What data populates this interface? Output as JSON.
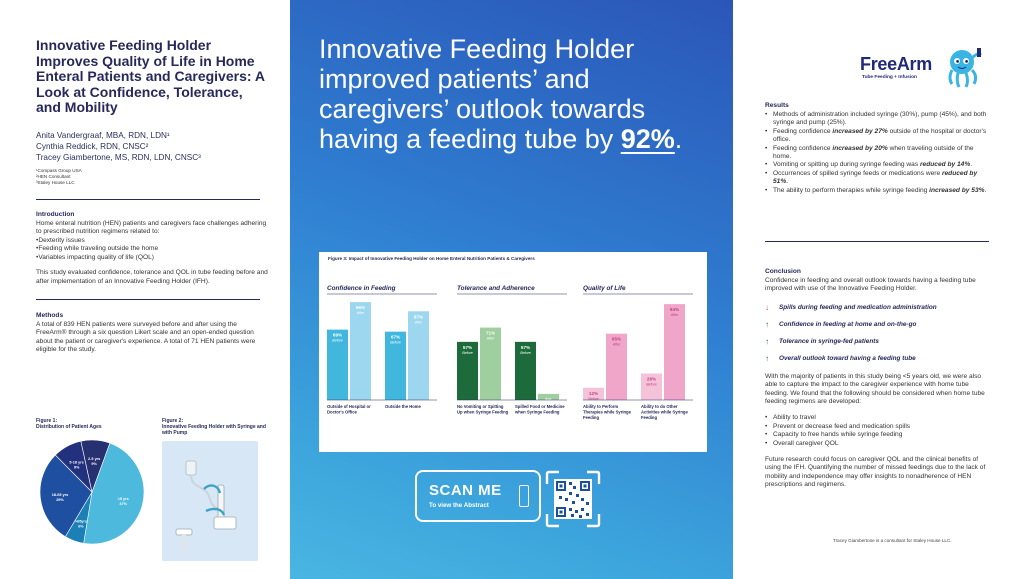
{
  "left": {
    "title": "Innovative Feeding Holder Improves Quality of Life in Home Enteral Patients and Caregivers: A Look at Confidence, Tolerance, and Mobility",
    "authors": [
      "Anita Vandergraaf, MBA, RDN, LDN¹",
      "Cynthia Reddick, RDN, CNSC²",
      "Tracey Giambertone, MS, RDN, LDN, CNSC³"
    ],
    "affiliations": [
      "¹Compass Group USA",
      "²HEN Consultant",
      "³Staley House LLC"
    ],
    "intro": {
      "heading": "Introduction",
      "lead": "Home enteral nutrition (HEN) patients and caregivers face challenges adhering to prescribed nutrition regimens related to:",
      "bullets": [
        "Dexterity issues",
        "Feeding while traveling outside the home",
        "Variables impacting quality of life (QOL)"
      ],
      "para": "This study evaluated confidence, tolerance and QOL in tube feeding before and after implementation of an Innovative Feeding Holder (IFH)."
    },
    "methods": {
      "heading": "Methods",
      "text": "A total of 839 HEN patients were surveyed before and after using the FreeArm® through a six question Likert scale and an open-ended question about the patient or caregiver's experience. A total of 71 HEN patients were eligible for the study."
    },
    "fig1": {
      "label": "Figure 1:",
      "caption": "Distribution of Patient Ages",
      "slices": [
        {
          "label": "<5 yrs",
          "value": 47,
          "color": "#4cb9dd"
        },
        {
          "label": ">65yrs",
          "value": 6,
          "color": "#1c7fb5"
        },
        {
          "label": "18-65 yrs",
          "value": 29,
          "color": "#1f4fa0"
        },
        {
          "label": "5-18 yrs",
          "value": 9,
          "color": "#22317e"
        },
        {
          "label": "2-5 yrs",
          "value": 9,
          "color": "#273070"
        }
      ],
      "slice_texts": [
        "<5 yrs\n47%",
        ">65yrs\n6%",
        "18-65 yrs\n29%",
        "5-18 yrs\n9%",
        "2-5 yrs\n9%"
      ]
    },
    "fig2": {
      "label": "Figure 2:",
      "caption": "Innovative Feeding Holder with Syringe and with Pump"
    }
  },
  "center": {
    "headline_a": "Innovative Feeding Holder improved patients’ and caregivers’ outlook towards having a feeding tube by ",
    "headline_pct": "92%",
    "headline_end": ".",
    "scan_me": "SCAN ME",
    "scan_sub": "To view the Abstract"
  },
  "chart_data": {
    "type": "bar",
    "title": "Figure 3: Impact of Innovative Feeding Holder on Home Enteral Nutrition Patients & Caregivers",
    "ylim": [
      0,
      100
    ],
    "groups": [
      {
        "name": "Confidence in Feeding",
        "colors": [
          "#41b7de",
          "#9dd6ef"
        ],
        "categories": [
          "Outside of Hospital or Doctor's Office",
          "Outside the Home"
        ],
        "series": [
          {
            "name": "Before",
            "values": [
              69,
              67
            ]
          },
          {
            "name": "After",
            "values": [
              96,
              87
            ]
          }
        ]
      },
      {
        "name": "Tolerance and Adherence",
        "colors": [
          "#1d6b3a",
          "#9fcf9e"
        ],
        "categories": [
          "No Vomiting or Spitting Up when Syringe Feeding",
          "Spilled Food or Medicine when Syringe Feeding"
        ],
        "series": [
          {
            "name": "Before",
            "values": [
              57,
              57
            ]
          },
          {
            "name": "After",
            "values": [
              71,
              6
            ]
          }
        ]
      },
      {
        "name": "Quality of Life",
        "colors": [
          "#f0a6c9",
          "#f0a6c9"
        ],
        "categories": [
          "Ability to Perform Therapies while Syringe Feeding",
          "Ability to do Other Activities while Syringe Feeding"
        ],
        "series": [
          {
            "name": "Before",
            "values": [
              12,
              26
            ]
          },
          {
            "name": "After",
            "values": [
              65,
              94
            ]
          }
        ]
      }
    ]
  },
  "right": {
    "logo_main": "FreeArm",
    "logo_sub": "Tube Feeding + Infusion",
    "results": {
      "heading": "Results",
      "items": [
        [
          {
            "t": "Methods of administration included syringe (30%), pump (45%), and both syringe and pump (25%).",
            "b": false
          }
        ],
        [
          {
            "t": "Feeding confidence ",
            "b": false
          },
          {
            "t": "increased by 27%",
            "b": true
          },
          {
            "t": " outside of the hospital or doctor's office.",
            "b": false
          }
        ],
        [
          {
            "t": "Feeding confidence ",
            "b": false
          },
          {
            "t": "increased by 20%",
            "b": true
          },
          {
            "t": " when traveling outside of the home.",
            "b": false
          }
        ],
        [
          {
            "t": "Vomiting or spitting up during syringe feeding was ",
            "b": false
          },
          {
            "t": "reduced by 14%",
            "b": true
          },
          {
            "t": ".",
            "b": false
          }
        ],
        [
          {
            "t": "Occurrences of spilled syringe feeds or medications were ",
            "b": false
          },
          {
            "t": "reduced by 51%",
            "b": true
          },
          {
            "t": ".",
            "b": false
          }
        ],
        [
          {
            "t": "The ability to perform therapies while syringe feeding ",
            "b": false
          },
          {
            "t": "increased by 53%",
            "b": true
          },
          {
            "t": ".",
            "b": false
          }
        ]
      ]
    },
    "conclusion": {
      "heading": "Conclusion",
      "lead": "Confidence in feeding and overall outlook towards having a feeding tube improved with use of the Innovative Feeding Holder.",
      "points": [
        {
          "dir": "down",
          "text": "Spills during feeding and medication administration"
        },
        {
          "dir": "up",
          "text": "Confidence in feeding at home and on-the-go"
        },
        {
          "dir": "up",
          "text": "Tolerance in syringe-fed patients"
        },
        {
          "dir": "up",
          "text": "Overall outlook toward having a feeding tube"
        }
      ],
      "para1": "With the majority of patients in this study being <5 years old, we were also able to capture the impact to the caregiver experience with home tube feeding. We found that the following should be considered when home tube feeding regimens are developed:",
      "bullets": [
        "Ability to travel",
        "Prevent or decrease feed and medication spills",
        "Capacity to free hands while syringe feeding",
        "Overall caregiver QOL"
      ],
      "para2": "Future research could focus on caregiver QOL and the clinical benefits of using the IFH. Quantifying the number of missed feedings due to the lack of mobility and independence may offer insights to nonadherence of HEN prescriptions and regimens."
    },
    "footnote": "Tracey Giambertone is a consultant for Staley House LLC."
  }
}
